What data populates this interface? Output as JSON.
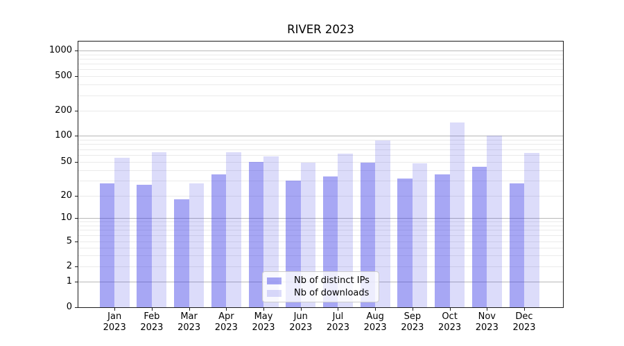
{
  "title": "RIVER 2023",
  "chart_data": {
    "type": "bar",
    "title": "RIVER 2023",
    "categories": [
      "Jan",
      "Feb",
      "Mar",
      "Apr",
      "May",
      "Jun",
      "Jul",
      "Aug",
      "Sep",
      "Oct",
      "Nov",
      "Dec"
    ],
    "x_year": "2023",
    "series": [
      {
        "name": "Nb of distinct IPs",
        "color": "#3c3ce6",
        "alpha": 0.45,
        "values": [
          28,
          27,
          18,
          36,
          50,
          30,
          34,
          49,
          32,
          36,
          44,
          28
        ]
      },
      {
        "name": "Nb of downloads",
        "color": "#3c3ce6",
        "alpha": 0.18,
        "values": [
          56,
          65,
          28,
          65,
          58,
          49,
          62,
          88,
          48,
          145,
          100,
          63
        ]
      }
    ],
    "yscale": "symlog",
    "y_ticks": [
      0,
      1,
      2,
      5,
      10,
      20,
      50,
      100,
      200,
      500,
      1000
    ],
    "ylim": [
      0,
      1300
    ],
    "grid": true,
    "grid_major_at": [
      1,
      10,
      100,
      1000
    ],
    "legend_position": "lower center",
    "xlabel": "",
    "ylabel": ""
  }
}
